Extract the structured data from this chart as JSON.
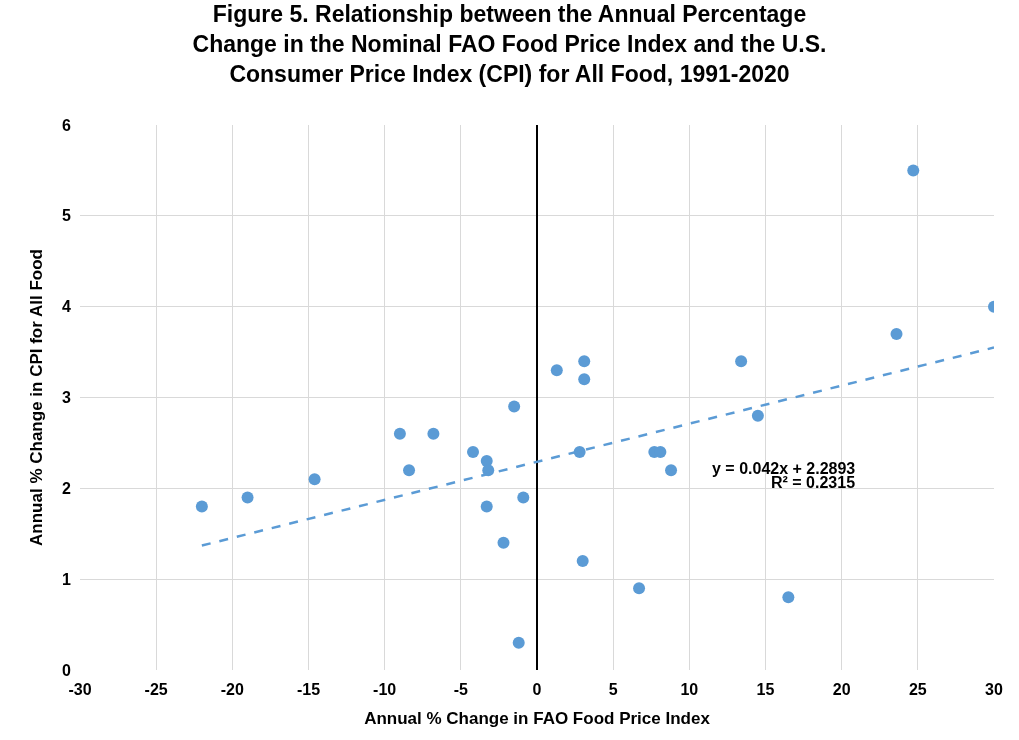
{
  "chart_data": {
    "type": "scatter",
    "title": "Figure 5. Relationship between the Annual Percentage Change in the Nominal FAO Food Price Index and the U.S. Consumer Price Index (CPI) for All Food, 1991-2020",
    "xlabel": "Annual % Change in FAO Food Price Index",
    "ylabel": "Annual % Change in CPI for All Food",
    "series": [
      {
        "color": "#5b9bd5",
        "marker": "circle",
        "x": [
          -22,
          -19,
          -14.6,
          -9,
          -8.4,
          -6.8,
          -4.2,
          -3.3,
          -3.2,
          -3.3,
          -2.2,
          -1.5,
          -1.2,
          -0.9,
          1.3,
          3.1,
          3.1,
          2.8,
          3.0,
          6.7,
          7.7,
          8.1,
          8.8,
          13.4,
          14.5,
          16.5,
          23.6,
          24.7,
          30
        ],
        "values": [
          1.8,
          1.9,
          2.1,
          2.6,
          2.2,
          2.6,
          2.4,
          2.3,
          2.2,
          1.8,
          1.4,
          2.9,
          0.3,
          1.9,
          3.3,
          3.4,
          3.2,
          2.4,
          1.2,
          0.9,
          2.4,
          2.4,
          2.2,
          3.4,
          2.8,
          0.8,
          3.7,
          5.5,
          4.0
        ]
      },
      {
        "type": "line",
        "color": "#5b9bd5",
        "line_style": "dashed",
        "x": [
          -22,
          30
        ],
        "values": [
          1.37,
          3.55
        ]
      }
    ],
    "annotations": [
      "y = 0.042x + 2.2893",
      "R² = 0.2315"
    ],
    "xlim": [
      -30,
      30
    ],
    "xticks": [
      -30,
      -25,
      -20,
      -15,
      -10,
      -5,
      0,
      5,
      10,
      15,
      20,
      25,
      30
    ],
    "ylim": [
      0,
      6
    ],
    "yticks": [
      0,
      1,
      2,
      3,
      4,
      5,
      6
    ],
    "grid": true
  }
}
